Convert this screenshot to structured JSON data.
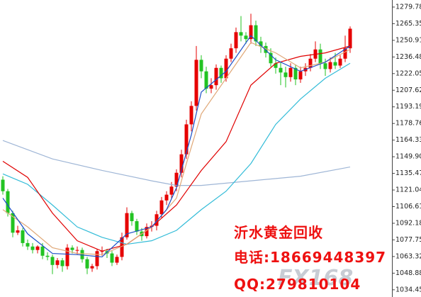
{
  "chart_data": {
    "type": "candlestick",
    "open": [
      1130,
      1120,
      1101,
      1084,
      1086,
      1075,
      1072,
      1069,
      1072,
      1064,
      1063,
      1056,
      1060,
      1055,
      1071,
      1069,
      1069,
      1061,
      1053,
      1055,
      1068,
      1068,
      1066,
      1058,
      1063,
      1080,
      1101,
      1094,
      1085,
      1081,
      1089,
      1090,
      1100,
      1112,
      1117,
      1124,
      1136,
      1152,
      1178,
      1194,
      1234,
      1224,
      1209,
      1212,
      1227,
      1218,
      1235,
      1244,
      1258,
      1255,
      1252,
      1264,
      1250,
      1246,
      1240,
      1231,
      1227,
      1223,
      1219,
      1227,
      1217,
      1224,
      1227,
      1235,
      1243,
      1231,
      1226,
      1232,
      1229,
      1235,
      1244
    ],
    "high": [
      1133,
      1122,
      1103,
      1090,
      1088,
      1078,
      1075,
      1073,
      1075,
      1067,
      1065,
      1062,
      1062,
      1074,
      1073,
      1072,
      1071,
      1063,
      1057,
      1070,
      1072,
      1070,
      1068,
      1065,
      1084,
      1106,
      1103,
      1096,
      1088,
      1092,
      1094,
      1103,
      1115,
      1120,
      1128,
      1139,
      1156,
      1182,
      1198,
      1246,
      1238,
      1228,
      1218,
      1230,
      1229,
      1238,
      1248,
      1262,
      1272,
      1258,
      1274,
      1268,
      1254,
      1249,
      1244,
      1236,
      1232,
      1228,
      1231,
      1230,
      1228,
      1231,
      1239,
      1250,
      1248,
      1235,
      1236,
      1240,
      1238,
      1255,
      1263
    ],
    "low": [
      1117,
      1098,
      1080,
      1082,
      1072,
      1069,
      1066,
      1066,
      1061,
      1060,
      1048,
      1053,
      1050,
      1052,
      1066,
      1065,
      1058,
      1048,
      1050,
      1052,
      1064,
      1062,
      1055,
      1056,
      1060,
      1078,
      1090,
      1082,
      1077,
      1079,
      1085,
      1086,
      1097,
      1108,
      1114,
      1120,
      1132,
      1148,
      1172,
      1190,
      1218,
      1205,
      1205,
      1208,
      1214,
      1215,
      1232,
      1240,
      1250,
      1248,
      1248,
      1246,
      1240,
      1236,
      1228,
      1222,
      1212,
      1210,
      1215,
      1212,
      1214,
      1220,
      1224,
      1232,
      1226,
      1220,
      1223,
      1226,
      1227,
      1232,
      1240
    ],
    "close": [
      1120,
      1101,
      1084,
      1086,
      1075,
      1072,
      1069,
      1072,
      1064,
      1063,
      1056,
      1060,
      1055,
      1071,
      1069,
      1069,
      1061,
      1053,
      1055,
      1068,
      1068,
      1066,
      1058,
      1063,
      1080,
      1101,
      1094,
      1085,
      1081,
      1089,
      1090,
      1100,
      1112,
      1117,
      1124,
      1136,
      1152,
      1178,
      1194,
      1234,
      1224,
      1209,
      1212,
      1227,
      1218,
      1235,
      1244,
      1258,
      1255,
      1252,
      1264,
      1250,
      1246,
      1240,
      1231,
      1227,
      1223,
      1219,
      1227,
      1217,
      1224,
      1227,
      1235,
      1243,
      1231,
      1226,
      1232,
      1229,
      1235,
      1244,
      1261
    ],
    "up_color": "#e60000",
    "down_color": "#22c322",
    "lines": [
      {
        "color": "#9fb6d6",
        "x": [
          0,
          10,
          20,
          30,
          35,
          40,
          50,
          60,
          70
        ],
        "values": [
          1164,
          1148,
          1138,
          1129,
          1125,
          1125,
          1129,
          1133,
          1141
        ]
      },
      {
        "color": "#33bcd8",
        "x": [
          0,
          5,
          10,
          15,
          20,
          25,
          30,
          35,
          40,
          45,
          50,
          55,
          60,
          65,
          70
        ],
        "values": [
          1135,
          1126,
          1108,
          1089,
          1080,
          1074,
          1077,
          1086,
          1104,
          1120,
          1144,
          1178,
          1200,
          1218,
          1231
        ]
      },
      {
        "color": "#e00000",
        "x": [
          0,
          5,
          10,
          15,
          20,
          25,
          30,
          35,
          40,
          45,
          50,
          55,
          60,
          65,
          70
        ],
        "values": [
          1146,
          1132,
          1101,
          1077,
          1068,
          1074,
          1089,
          1108,
          1138,
          1163,
          1212,
          1231,
          1237,
          1240,
          1246
        ]
      },
      {
        "color": "#e0a878",
        "x": [
          0,
          5,
          10,
          15,
          20,
          25,
          30,
          35,
          37,
          40,
          45,
          50,
          55,
          60,
          65,
          70
        ],
        "values": [
          1104,
          1089,
          1071,
          1066,
          1065,
          1074,
          1089,
          1114,
          1144,
          1187,
          1218,
          1249,
          1240,
          1227,
          1232,
          1243
        ]
      },
      {
        "color": "#1a4fc8",
        "x": [
          0,
          5,
          10,
          15,
          20,
          25,
          30,
          33,
          35,
          38,
          40,
          45,
          50,
          55,
          60,
          65,
          70
        ],
        "values": [
          1114,
          1083,
          1066,
          1065,
          1063,
          1083,
          1089,
          1104,
          1123,
          1169,
          1206,
          1224,
          1255,
          1234,
          1224,
          1232,
          1246
        ]
      }
    ],
    "ylim": [
      1028.2,
      1285.9
    ],
    "yticks": [
      1279.78,
      1265.35,
      1250.91,
      1236.48,
      1222.05,
      1207.62,
      1193.19,
      1178.76,
      1164.33,
      {
        "value": 1149.9,
        "label": "1149.90"
      },
      1135.47,
      1121.04,
      1106.61,
      1092.18,
      1077.75,
      1063.32,
      1048.88,
      1034.45
    ],
    "annotations": [
      "沂水黄金回收",
      "电话:18669448397",
      "QQ:279810104"
    ],
    "logo": "FX168"
  }
}
